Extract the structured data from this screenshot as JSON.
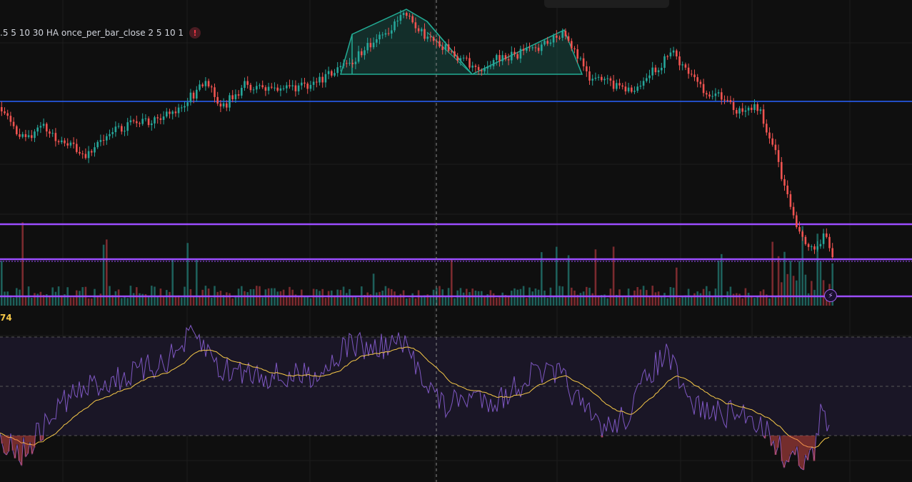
{
  "legend": {
    "text": ".5 5 10 30 HA once_per_bar_close 2 5 10 1",
    "warning_icon": "!"
  },
  "rsi": {
    "value_label": "74"
  },
  "alert_icon": "⚡",
  "colors": {
    "up": "#26a69a",
    "down": "#ef5350",
    "blue_line": "#2962ff",
    "purple_line": "#9c4dff",
    "rsi": "#7e57c2",
    "signal": "#f7c948",
    "pattern": "#22ab94"
  }
}
